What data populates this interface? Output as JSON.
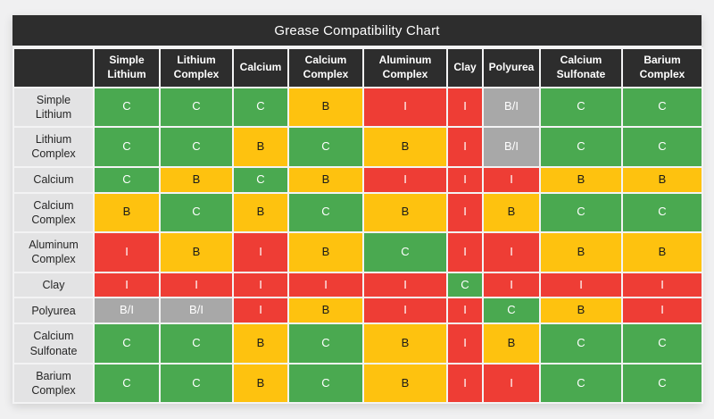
{
  "chart_data": {
    "type": "heatmap",
    "title": "Grease Compatibility Chart",
    "columns": [
      "Simple Lithium",
      "Lithium Complex",
      "Calcium",
      "Calcium Complex",
      "Aluminum Complex",
      "Clay",
      "Polyurea",
      "Calcium Sulfonate",
      "Barium Complex"
    ],
    "rows": [
      "Simple Lithium",
      "Lithium Complex",
      "Calcium",
      "Calcium Complex",
      "Aluminum Complex",
      "Clay",
      "Polyurea",
      "Calcium Sulfonate",
      "Barium Complex"
    ],
    "values": [
      [
        "C",
        "C",
        "C",
        "B",
        "I",
        "I",
        "B/I",
        "C",
        "C"
      ],
      [
        "C",
        "C",
        "B",
        "C",
        "B",
        "I",
        "B/I",
        "C",
        "C"
      ],
      [
        "C",
        "B",
        "C",
        "B",
        "I",
        "I",
        "I",
        "B",
        "B"
      ],
      [
        "B",
        "C",
        "B",
        "C",
        "B",
        "I",
        "B",
        "C",
        "C"
      ],
      [
        "I",
        "B",
        "I",
        "B",
        "C",
        "I",
        "I",
        "B",
        "B"
      ],
      [
        "I",
        "I",
        "I",
        "I",
        "I",
        "C",
        "I",
        "I",
        "I"
      ],
      [
        "B/I",
        "B/I",
        "I",
        "B",
        "I",
        "I",
        "C",
        "B",
        "I"
      ],
      [
        "C",
        "C",
        "B",
        "C",
        "B",
        "I",
        "B",
        "C",
        "C"
      ],
      [
        "C",
        "C",
        "B",
        "C",
        "B",
        "I",
        "I",
        "C",
        "C"
      ]
    ],
    "value_colors": {
      "C": {
        "bg": "#4aa950",
        "text": "#ffffff"
      },
      "B": {
        "bg": "#fec20f",
        "text": "#1b1b1b"
      },
      "I": {
        "bg": "#ee3d35",
        "text": "#ffffff"
      },
      "B/I": {
        "bg": "#a8a8a8",
        "text": "#ffffff"
      }
    },
    "layout": {
      "legend_position": "none",
      "grid": "on"
    }
  },
  "theme": {
    "header_bg": "#2d2d2d",
    "header_text": "#ffffff",
    "row_header_bg": "#e3e3e4",
    "row_header_text": "#262626",
    "page_bg": "#f0f0f1",
    "grid_line": "#f3f3f4"
  }
}
